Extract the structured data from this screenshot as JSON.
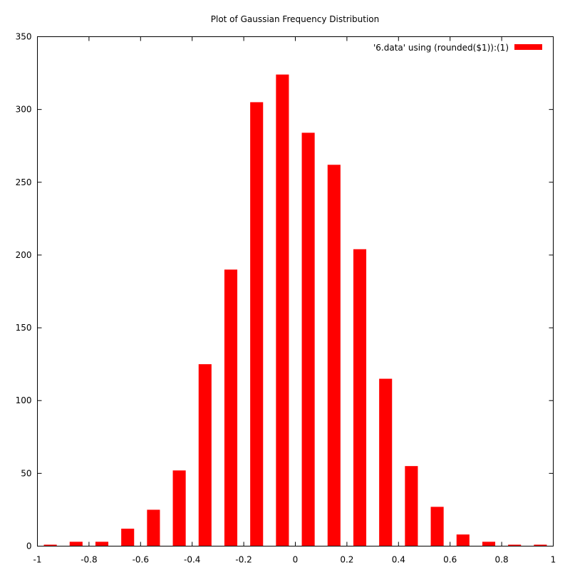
{
  "chart_data": {
    "type": "bar",
    "title": "Plot of Gaussian Frequency Distribution",
    "xlabel": "",
    "ylabel": "",
    "xlim": [
      -1,
      1
    ],
    "ylim": [
      0,
      350
    ],
    "x_ticks": [
      -1,
      -0.8,
      -0.6,
      -0.4,
      -0.2,
      0,
      0.2,
      0.4,
      0.6,
      0.8,
      1
    ],
    "x_tick_labels": [
      "-1",
      "-0.8",
      "-0.6",
      "-0.4",
      "-0.2",
      "0",
      "0.2",
      "0.4",
      "0.6",
      "0.8",
      "1"
    ],
    "y_ticks": [
      0,
      50,
      100,
      150,
      200,
      250,
      300,
      350
    ],
    "y_tick_labels": [
      "0",
      "50",
      "100",
      "150",
      "200",
      "250",
      "300",
      "350"
    ],
    "grid": false,
    "legend_position": "top-right",
    "bar_width": 0.05,
    "series": [
      {
        "name": "'6.data' using (rounded($1)):(1)",
        "color": "#ff0000",
        "x": [
          -0.95,
          -0.85,
          -0.75,
          -0.65,
          -0.55,
          -0.45,
          -0.35,
          -0.25,
          -0.15,
          -0.05,
          0.05,
          0.15,
          0.25,
          0.35,
          0.45,
          0.55,
          0.65,
          0.75,
          0.85,
          0.95
        ],
        "values": [
          1,
          3,
          3,
          12,
          25,
          52,
          125,
          190,
          305,
          324,
          284,
          262,
          204,
          115,
          55,
          27,
          8,
          3,
          1,
          1
        ]
      }
    ]
  }
}
